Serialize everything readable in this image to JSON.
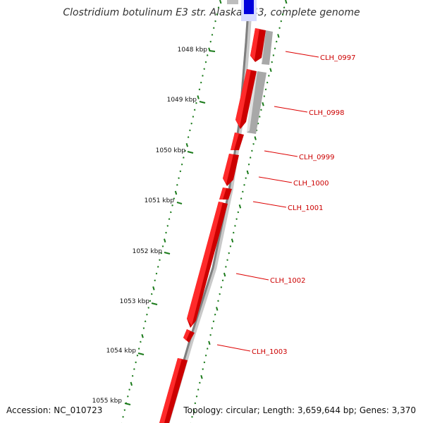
{
  "title": "Clostridium botulinum E3 str. Alaska E43, complete genome",
  "accession": "Accession: NC_010723",
  "summary": "Topology: circular; Length: 3,659,644 bp; Genes: 3,370",
  "colors": {
    "backbone": "#7f7f7f",
    "forward_gene": "#ff0000",
    "reverse_gene": "#bdbdbd",
    "highlight_gene": "#0000dd",
    "gc_dots": "#1a7a1a",
    "label": "#cc0000"
  },
  "kbp_ticks": [
    "1048 kbp",
    "1049 kbp",
    "1050 kbp",
    "1051 kbp",
    "1052 kbp",
    "1053 kbp",
    "1054 kbp",
    "1055 kbp"
  ],
  "genes": [
    "CLH_0997",
    "CLH_0998",
    "CLH_0999",
    "CLH_1000",
    "CLH_1001",
    "CLH_1002",
    "CLH_1003"
  ]
}
